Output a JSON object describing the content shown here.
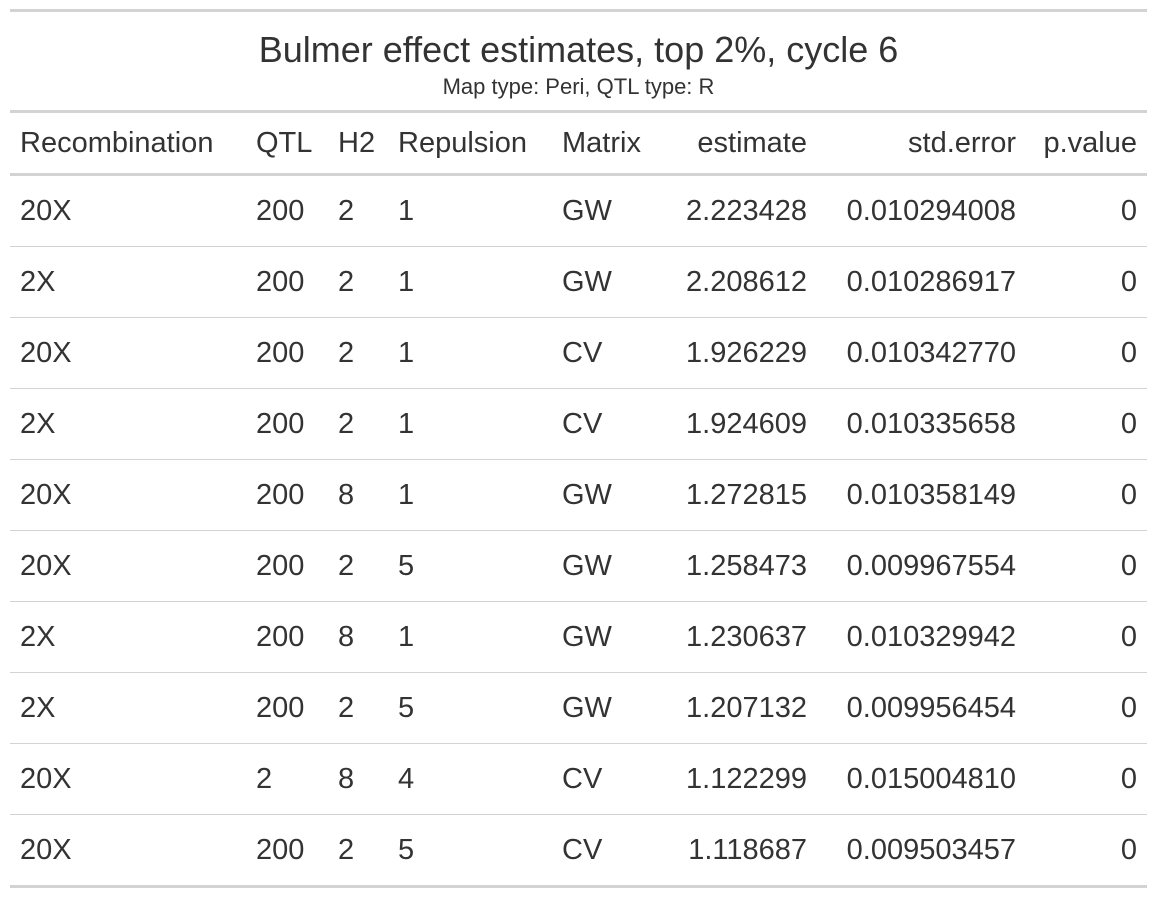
{
  "chart_data": {
    "type": "table",
    "title": "Bulmer effect estimates, top 2%, cycle 6",
    "subtitle": "Map type: Peri, QTL type: R",
    "columns": [
      "Recombination",
      "QTL",
      "H2",
      "Repulsion",
      "Matrix",
      "estimate",
      "std.error",
      "p.value"
    ],
    "column_align": [
      "left",
      "left",
      "left",
      "left",
      "left",
      "right",
      "right",
      "right"
    ],
    "rows": [
      [
        "20X",
        "200",
        "2",
        "1",
        "GW",
        "2.223428",
        "0.010294008",
        "0"
      ],
      [
        "2X",
        "200",
        "2",
        "1",
        "GW",
        "2.208612",
        "0.010286917",
        "0"
      ],
      [
        "20X",
        "200",
        "2",
        "1",
        "CV",
        "1.926229",
        "0.010342770",
        "0"
      ],
      [
        "2X",
        "200",
        "2",
        "1",
        "CV",
        "1.924609",
        "0.010335658",
        "0"
      ],
      [
        "20X",
        "200",
        "8",
        "1",
        "GW",
        "1.272815",
        "0.010358149",
        "0"
      ],
      [
        "20X",
        "200",
        "2",
        "5",
        "GW",
        "1.258473",
        "0.009967554",
        "0"
      ],
      [
        "2X",
        "200",
        "8",
        "1",
        "GW",
        "1.230637",
        "0.010329942",
        "0"
      ],
      [
        "2X",
        "200",
        "2",
        "5",
        "GW",
        "1.207132",
        "0.009956454",
        "0"
      ],
      [
        "20X",
        "2",
        "8",
        "4",
        "CV",
        "1.122299",
        "0.015004810",
        "0"
      ],
      [
        "20X",
        "200",
        "2",
        "5",
        "CV",
        "1.118687",
        "0.009503457",
        "0"
      ]
    ]
  },
  "colors": {
    "text": "#333333",
    "rule": "#d3d3d3",
    "background": "#ffffff"
  }
}
